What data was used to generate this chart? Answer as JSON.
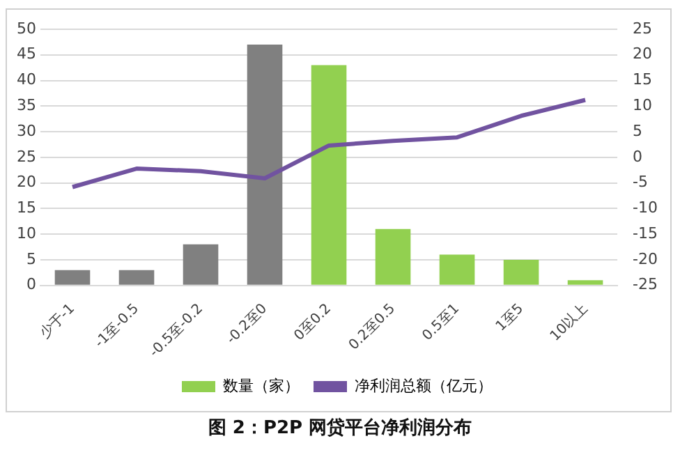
{
  "chart_data": {
    "type": "bar",
    "title": "图 2：P2P 网贷平台净利润分布",
    "categories": [
      "少于-1",
      "-1至-0.5",
      "-0.5至-0.2",
      "-0.2至0",
      "0至0.2",
      "0.2至0.5",
      "0.5至1",
      "1至5",
      "10以上"
    ],
    "series": [
      {
        "name": "数量（家）",
        "color": "#92d050",
        "colors": [
          "#808080",
          "#808080",
          "#808080",
          "#808080",
          "#92d050",
          "#92d050",
          "#92d050",
          "#92d050",
          "#92d050"
        ],
        "values": [
          3,
          3,
          8,
          47,
          43,
          11,
          6,
          5,
          1
        ]
      },
      {
        "name": "净利润总额（亿元）",
        "type": "line",
        "axis": "y2",
        "color": "#7153a0",
        "values": [
          -5.8,
          -2.2,
          -2.7,
          -4.1,
          2.3,
          3.2,
          3.9,
          8.1,
          11.2
        ]
      }
    ],
    "ylim": [
      0,
      50
    ],
    "yticks": [
      0,
      5,
      10,
      15,
      20,
      25,
      30,
      35,
      40,
      45,
      50
    ],
    "y2lim": [
      -25,
      25
    ],
    "y2ticks": [
      -25,
      -20,
      -15,
      -10,
      -5,
      0,
      5,
      10,
      15,
      20,
      25
    ],
    "grid": "y",
    "legend": "bottom",
    "marker": "none",
    "line_style": "solid"
  }
}
